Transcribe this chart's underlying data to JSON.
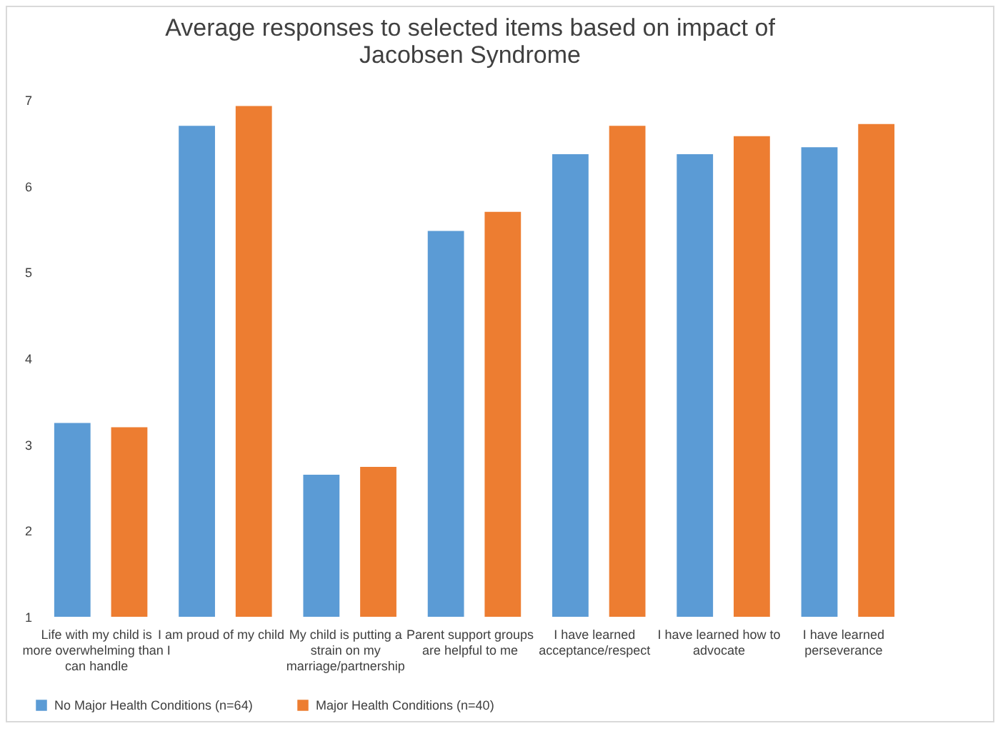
{
  "chart_data": {
    "type": "bar",
    "title": "Average responses to selected items based on impact of Jacobsen Syndrome",
    "categories": [
      "Life with my child is more overwhelming than I can handle",
      "I am proud of my child",
      "My child is putting a strain on my marriage/partnership",
      "Parent support groups are helpful to me",
      "I have learned acceptance/respect",
      "I have learned how to advocate",
      "I have learned perseverance"
    ],
    "series": [
      {
        "name": "No Major Health Conditions (n=64)",
        "color": "#5b9bd5",
        "values": [
          3.25,
          6.7,
          2.65,
          5.48,
          6.37,
          6.37,
          6.45
        ]
      },
      {
        "name": "Major Health Conditions (n=40)",
        "color": "#ed7d31",
        "values": [
          3.2,
          6.93,
          2.74,
          5.7,
          6.7,
          6.58,
          6.72
        ]
      }
    ],
    "ylim": [
      1,
      7
    ],
    "yticks": [
      1,
      2,
      3,
      4,
      5,
      6,
      7
    ],
    "grid": false,
    "legend": "bottom"
  }
}
